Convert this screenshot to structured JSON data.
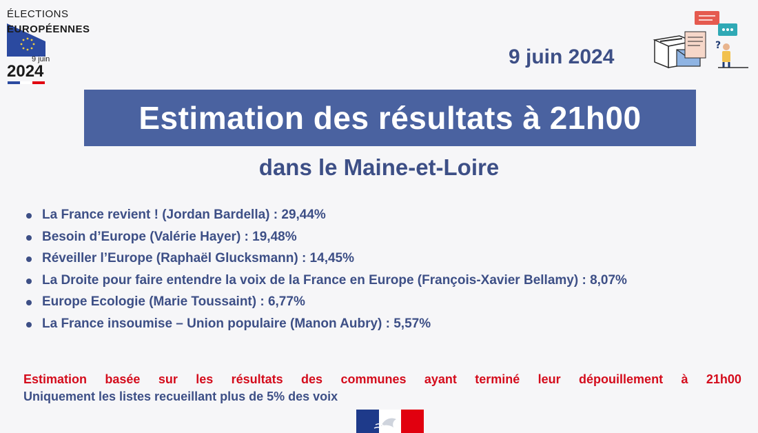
{
  "logo": {
    "line1": "ÉLECTIONS",
    "line2": "EUROPÉENNES",
    "date_small": "9 juin",
    "year": "2024",
    "flag_colors": [
      "#2b4aa0",
      "#ffffff",
      "#e1000f"
    ]
  },
  "header": {
    "date": "9 juin 2024",
    "illustration_icon": "ballot-box-and-mail-illustration"
  },
  "title": "Estimation des résultats à 21h00",
  "subtitle": "dans le Maine-et-Loire",
  "results": [
    "La France revient ! (Jordan Bardella) : 29,44%",
    "Besoin d’Europe (Valérie Hayer) : 19,48%",
    "Réveiller l’Europe (Raphaël Glucksmann) : 14,45%",
    "La Droite pour faire entendre la voix de la France en Europe (François-Xavier Bellamy) : 8,07%",
    "Europe Ecologie (Marie Toussaint) : 6,77%",
    "La France insoumise – Union populaire (Manon Aubry) : 5,57%"
  ],
  "notes": {
    "line1": "Estimation basée sur les résultats des communes ayant terminé leur dépouillement à 21h00",
    "line2": "Uniquement les listes recueillant plus de 5% des voix"
  },
  "colors": {
    "accent_blue": "#3d4f86",
    "banner_blue": "#4a62a0",
    "note_red": "#d40c1c"
  },
  "footer": {
    "emblem_icon": "marianne-logo"
  }
}
